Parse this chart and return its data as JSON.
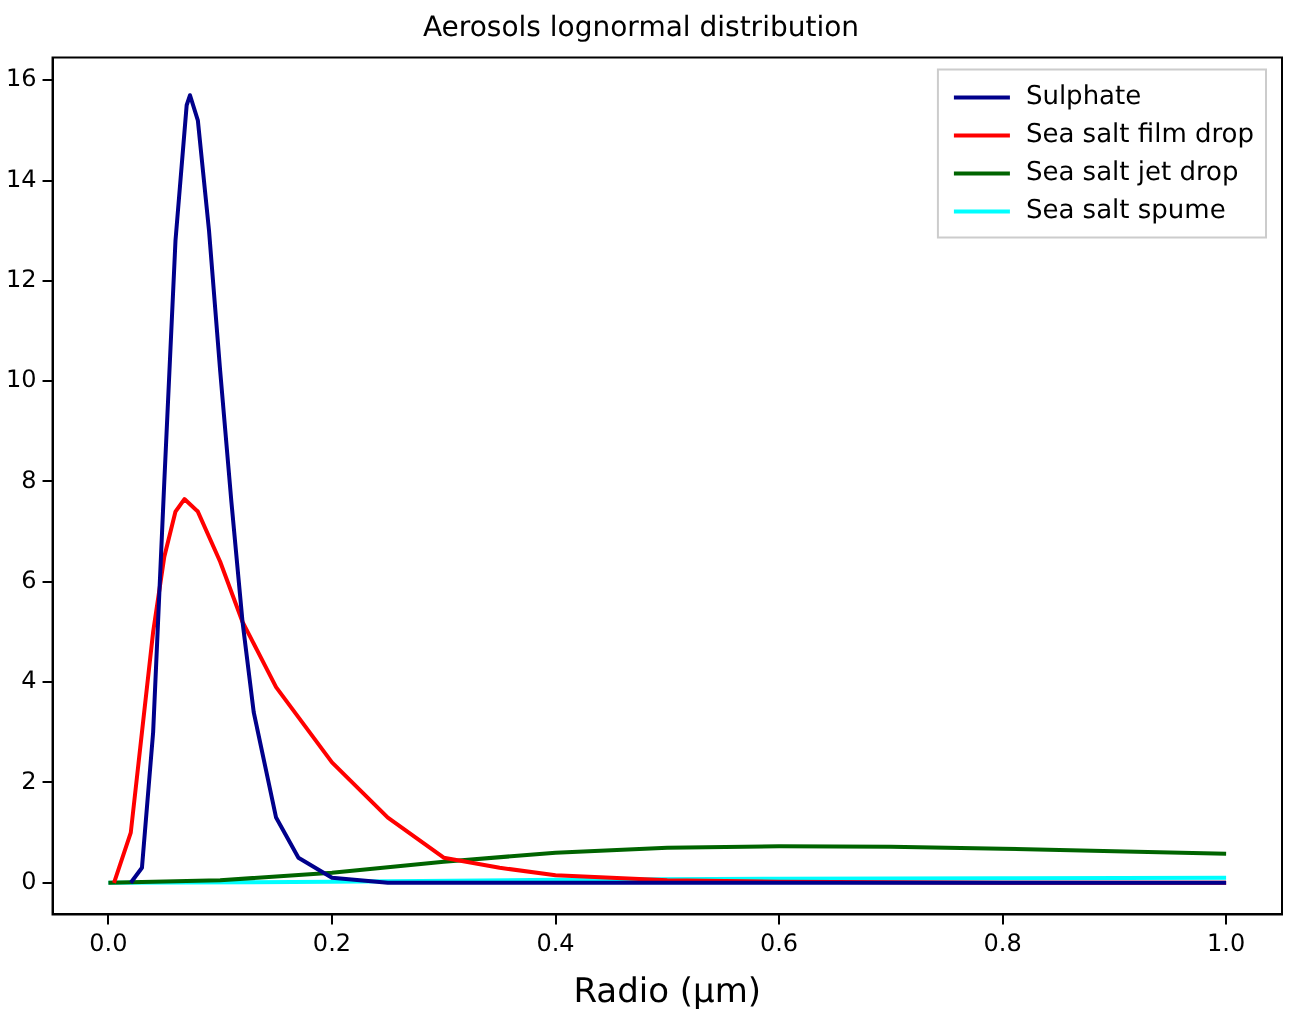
{
  "chart_data": {
    "type": "line",
    "title": "Aerosols lognormal distribution",
    "xlabel": "Radio (μm)",
    "xlim": [
      -0.05,
      1.05
    ],
    "xticks": [
      {
        "value": 0,
        "label": "0.0"
      },
      {
        "value": 0.2,
        "label": "0.2"
      },
      {
        "value": 0.4,
        "label": "0.4"
      },
      {
        "value": 0.6,
        "label": "0.6"
      },
      {
        "value": 0.8,
        "label": "0.8"
      },
      {
        "value": 1,
        "label": "1.0"
      }
    ],
    "ylim": [
      -0.63,
      16.45
    ],
    "yticks": [
      0,
      2,
      4,
      6,
      8,
      10,
      12,
      14,
      16
    ],
    "grid": false,
    "legend": "top right",
    "marker": "none",
    "line_style": "solid",
    "series": [
      {
        "name": "Sulphate",
        "color": "#00008b",
        "x": [
          0.02,
          0.03,
          0.04,
          0.05,
          0.06,
          0.07,
          0.073,
          0.08,
          0.09,
          0.1,
          0.11,
          0.12,
          0.13,
          0.15,
          0.17,
          0.2,
          0.25,
          0.4,
          0.6,
          0.8,
          1.0
        ],
        "values": [
          0,
          0.3,
          3,
          8,
          12.8,
          15.5,
          15.7,
          15.2,
          13,
          10.2,
          7.6,
          5.2,
          3.4,
          1.3,
          0.5,
          0.1,
          0,
          0,
          0,
          0,
          0
        ]
      },
      {
        "name": "Sea salt film drop",
        "color": "#ff0000",
        "x": [
          0.005,
          0.02,
          0.03,
          0.04,
          0.05,
          0.06,
          0.068,
          0.08,
          0.1,
          0.12,
          0.15,
          0.2,
          0.25,
          0.3,
          0.35,
          0.4,
          0.5,
          0.6,
          0.8,
          1.0
        ],
        "values": [
          0,
          1,
          3,
          5,
          6.5,
          7.4,
          7.65,
          7.4,
          6.4,
          5.2,
          3.9,
          2.4,
          1.3,
          0.5,
          0.3,
          0.15,
          0.05,
          0.02,
          0,
          0
        ]
      },
      {
        "name": "Sea salt jet drop",
        "color": "#006400",
        "x": [
          0,
          0.1,
          0.2,
          0.3,
          0.4,
          0.5,
          0.6,
          0.7,
          0.8,
          0.9,
          1.0
        ],
        "values": [
          0,
          0.05,
          0.2,
          0.42,
          0.6,
          0.7,
          0.73,
          0.72,
          0.68,
          0.63,
          0.58
        ]
      },
      {
        "name": "Sea salt spume",
        "color": "#00ffff",
        "x": [
          0,
          0.2,
          0.4,
          0.6,
          0.8,
          1.0
        ],
        "values": [
          0,
          0.02,
          0.06,
          0.08,
          0.09,
          0.1
        ]
      }
    ]
  }
}
